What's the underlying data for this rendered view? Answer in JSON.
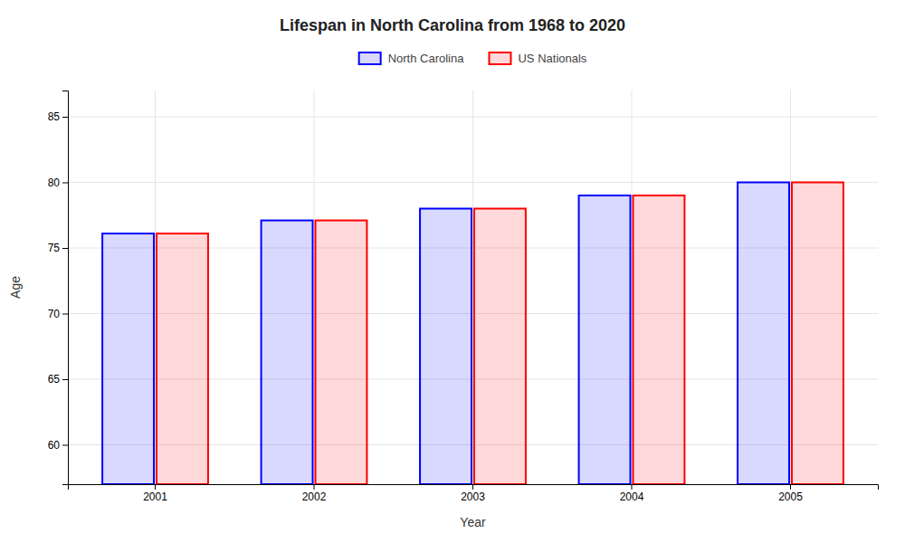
{
  "chart_data": {
    "type": "bar",
    "title": "Lifespan in North Carolina from 1968 to 2020",
    "xlabel": "Year",
    "ylabel": "Age",
    "categories": [
      "2001",
      "2002",
      "2003",
      "2004",
      "2005"
    ],
    "series": [
      {
        "name": "North Carolina",
        "color": "#0000ff",
        "values": [
          76.1,
          77.1,
          78.0,
          79.0,
          80.0
        ]
      },
      {
        "name": "US Nationals",
        "color": "#ff0000",
        "values": [
          76.1,
          77.1,
          78.0,
          79.0,
          80.0
        ]
      }
    ],
    "ylim": [
      57,
      87
    ],
    "yticks": [
      60,
      65,
      70,
      75,
      80,
      85
    ],
    "grid": true,
    "legend": "top"
  }
}
